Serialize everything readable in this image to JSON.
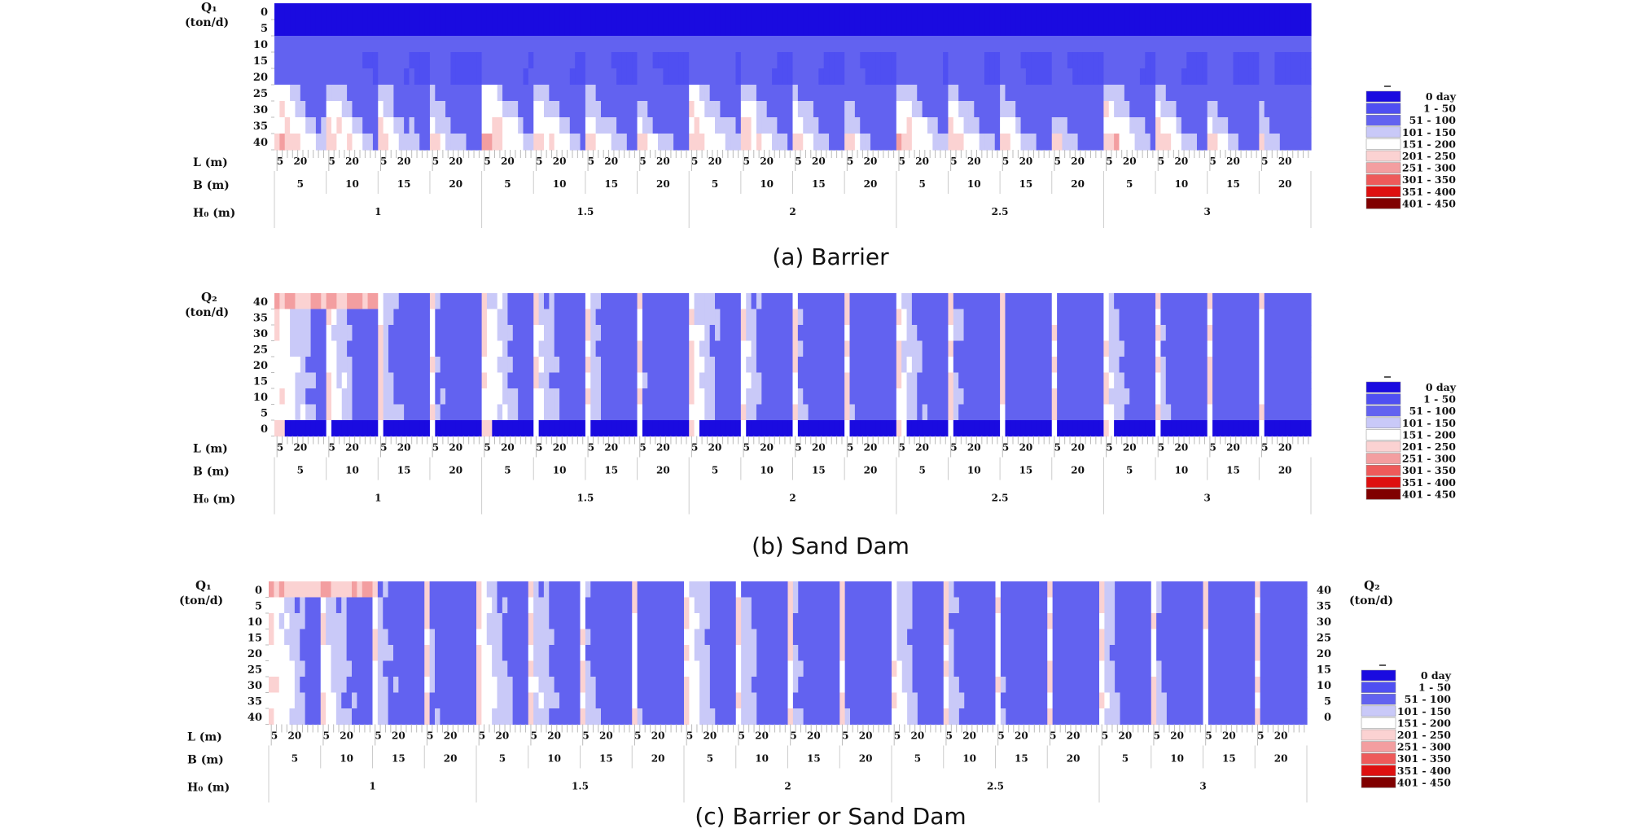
{
  "legend": {
    "entries": [
      "0  day",
      "1 -  50",
      "51 - 100",
      "101 - 150",
      "151 - 200",
      "201 - 250",
      "251 - 300",
      "301 - 350",
      "351 - 400",
      "401 - 450"
    ],
    "colors": [
      "#1a0be0",
      "#4f4ff2",
      "#6262f0",
      "#c9c9f8",
      "#ffffff",
      "#fbd2d2",
      "#f39ea0",
      "#ee5a5a",
      "#de1010",
      "#800000"
    ]
  },
  "axes": {
    "L_label": "L (m)",
    "B_label": "B (m)",
    "H_label": "H₀ (m)",
    "L_ticks": [
      "5",
      "20"
    ],
    "B_ticks": [
      "5",
      "10",
      "15",
      "20"
    ],
    "H_ticks": [
      "1",
      "1.5",
      "2",
      "2.5",
      "3"
    ],
    "Q1_label": "Q₁",
    "Q2_label": "Q₂",
    "unit": "(ton/d)"
  },
  "chart_data": [
    {
      "type": "heatmap",
      "caption": "(a) Barrier",
      "y_label": "Q₁ (ton/d)",
      "y_ticks": [
        "0",
        "5",
        "10",
        "15",
        "20",
        "25",
        "30",
        "35",
        "40"
      ],
      "pattern": "barrier",
      "x_levels": {
        "H0": [
          "1",
          "1.5",
          "2",
          "2.5",
          "3"
        ],
        "B": [
          "5",
          "10",
          "15",
          "20"
        ],
        "L": [
          "5",
          "20"
        ]
      }
    },
    {
      "type": "heatmap",
      "caption": "(b) Sand Dam",
      "y_label": "Q₂ (ton/d)",
      "y_ticks": [
        "40",
        "35",
        "30",
        "25",
        "20",
        "15",
        "10",
        "5",
        "0"
      ],
      "pattern": "sanddam",
      "x_levels": {
        "H0": [
          "1",
          "1.5",
          "2",
          "2.5",
          "3"
        ],
        "B": [
          "5",
          "10",
          "15",
          "20"
        ],
        "L": [
          "5",
          "20"
        ]
      }
    },
    {
      "type": "heatmap",
      "caption": "(c) Barrier or Sand Dam",
      "y_label": "Q₁ (ton/d)",
      "y_ticks": [
        "0",
        "5",
        "10",
        "15",
        "20",
        "25",
        "30",
        "35",
        "40"
      ],
      "y2_label": "Q₂ (ton/d)",
      "y2_ticks": [
        "40",
        "35",
        "30",
        "25",
        "20",
        "15",
        "10",
        "5",
        "0"
      ],
      "pattern": "combined",
      "x_levels": {
        "H0": [
          "1",
          "1.5",
          "2",
          "2.5",
          "3"
        ],
        "B": [
          "5",
          "10",
          "15",
          "20"
        ],
        "L": [
          "5",
          "20"
        ]
      }
    }
  ]
}
